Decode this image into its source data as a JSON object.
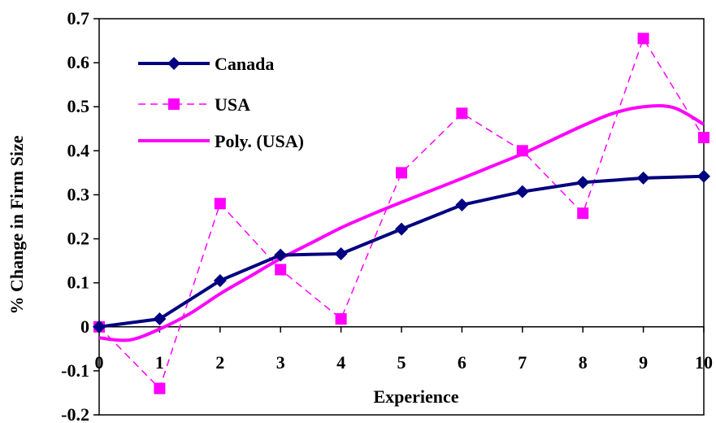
{
  "chart_data": {
    "type": "line",
    "title": "",
    "xlabel": "Experience",
    "ylabel": "% Change in Firm Size",
    "x": [
      0,
      1,
      2,
      3,
      4,
      5,
      6,
      7,
      8,
      9,
      10
    ],
    "xlim": [
      0,
      10
    ],
    "ylim": [
      -0.2,
      0.7
    ],
    "x_ticks": [
      "0",
      "1",
      "2",
      "3",
      "4",
      "5",
      "6",
      "7",
      "8",
      "9",
      "10"
    ],
    "y_ticks": [
      "0.7",
      "0.6",
      "0.5",
      "0.4",
      "0.3",
      "0.2",
      "0.1",
      "0",
      "-0.1",
      "-0.2"
    ],
    "grid": false,
    "legend_position": "top-left",
    "series": [
      {
        "name": "Canada",
        "values": [
          0.0,
          0.018,
          0.105,
          0.163,
          0.166,
          0.222,
          0.277,
          0.307,
          0.328,
          0.338,
          0.342
        ],
        "color": "#000080",
        "marker": "diamond",
        "line": "solid"
      },
      {
        "name": "USA",
        "values": [
          0.0,
          -0.14,
          0.28,
          0.13,
          0.018,
          0.35,
          0.485,
          0.4,
          0.258,
          0.655,
          0.43
        ],
        "color": "#FF00FF",
        "marker": "square",
        "line": "dashed"
      },
      {
        "name": "Poly. (USA)",
        "x": [
          0,
          0.5,
          1,
          1.5,
          2,
          2.5,
          3,
          3.5,
          4,
          4.5,
          5,
          5.5,
          6,
          6.5,
          7,
          7.5,
          8,
          8.5,
          9,
          9.5,
          10
        ],
        "values": [
          -0.025,
          -0.03,
          -0.005,
          0.03,
          0.075,
          0.115,
          0.155,
          0.19,
          0.225,
          0.255,
          0.283,
          0.31,
          0.337,
          0.365,
          0.393,
          0.425,
          0.457,
          0.485,
          0.5,
          0.498,
          0.46
        ],
        "color": "#FF00FF",
        "marker": "none",
        "line": "solid-trend"
      }
    ]
  }
}
